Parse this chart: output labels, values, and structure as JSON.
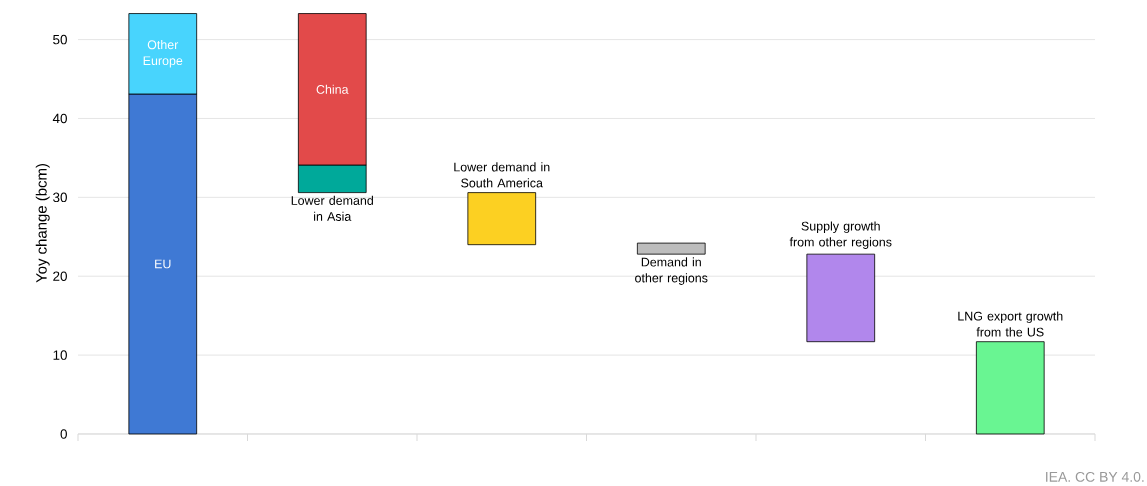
{
  "chart_data": {
    "type": "bar",
    "ylabel": "Yoy change (bcm)",
    "categories": [
      null,
      null,
      null,
      null,
      null,
      null
    ],
    "series": [
      {
        "name": "EU",
        "color": "#3f79d4",
        "values": [
          43.1,
          null,
          null,
          null,
          null,
          null
        ],
        "base": [
          0,
          null,
          null,
          null,
          null,
          null
        ]
      },
      {
        "name": "Other Europe",
        "color": "#48d4fd",
        "values": [
          10.2,
          null,
          null,
          null,
          null,
          null
        ],
        "base": [
          43.1,
          null,
          null,
          null,
          null,
          null
        ]
      },
      {
        "name": "Lower demand in Asia",
        "color": "#00a99a",
        "values": [
          null,
          3.5,
          null,
          null,
          null,
          null
        ],
        "base": [
          null,
          30.6,
          null,
          null,
          null,
          null
        ]
      },
      {
        "name": "China",
        "color": "#e24a4a",
        "values": [
          null,
          19.2,
          null,
          null,
          null,
          null
        ],
        "base": [
          null,
          34.1,
          null,
          null,
          null,
          null
        ]
      },
      {
        "name": "Lower demand in South America",
        "color": "#fcd022",
        "values": [
          null,
          null,
          6.6,
          null,
          null,
          null
        ],
        "base": [
          null,
          null,
          24.0,
          null,
          null,
          null
        ]
      },
      {
        "name": "Demand in other regions",
        "color": "#bdbdbd",
        "values": [
          null,
          null,
          null,
          1.4,
          null,
          null
        ],
        "base": [
          null,
          null,
          null,
          22.8,
          null,
          null
        ]
      },
      {
        "name": "Supply growth from other regions",
        "color": "#b187ec",
        "values": [
          null,
          null,
          null,
          null,
          11.1,
          null
        ],
        "base": [
          null,
          null,
          null,
          null,
          11.7,
          null
        ]
      },
      {
        "name": "LNG export growth from the US",
        "color": "#69f592",
        "values": [
          null,
          null,
          null,
          null,
          null,
          11.7
        ],
        "base": [
          null,
          null,
          null,
          null,
          null,
          0
        ]
      }
    ],
    "ylim": [
      0,
      53.5
    ],
    "yticks": [
      0,
      10,
      20,
      30,
      40,
      50
    ],
    "grid": "y",
    "annotations": [
      "IEA. CC BY 4.0."
    ]
  }
}
